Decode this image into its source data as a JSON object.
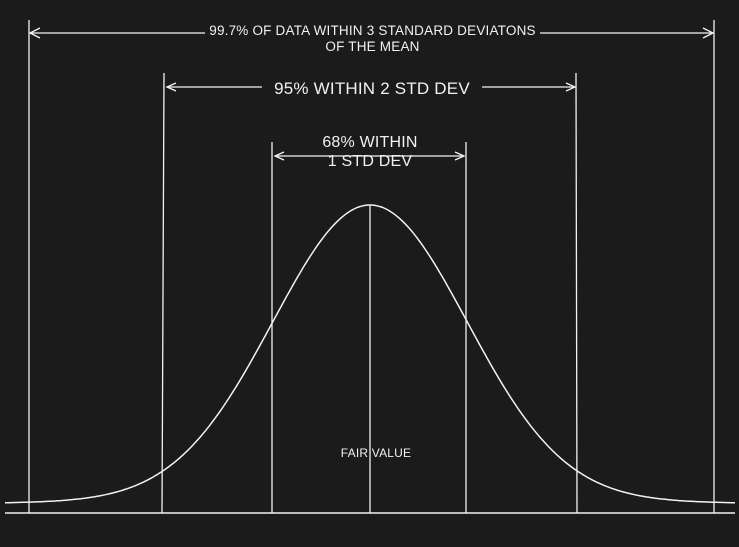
{
  "labels": {
    "three_sigma_line1": "99.7% OF DATA WITHIN 3 STANDARD DEVIATONS",
    "three_sigma_line2": "OF THE MEAN",
    "two_sigma": "95% WITHIN 2 STD DEV",
    "one_sigma_line1": "68% WITHIN",
    "one_sigma_line2": "1 STD DEV",
    "center": "FAIR VALUE"
  },
  "colors": {
    "background": "#1c1b1b",
    "stroke": "#f2f2f2"
  }
}
